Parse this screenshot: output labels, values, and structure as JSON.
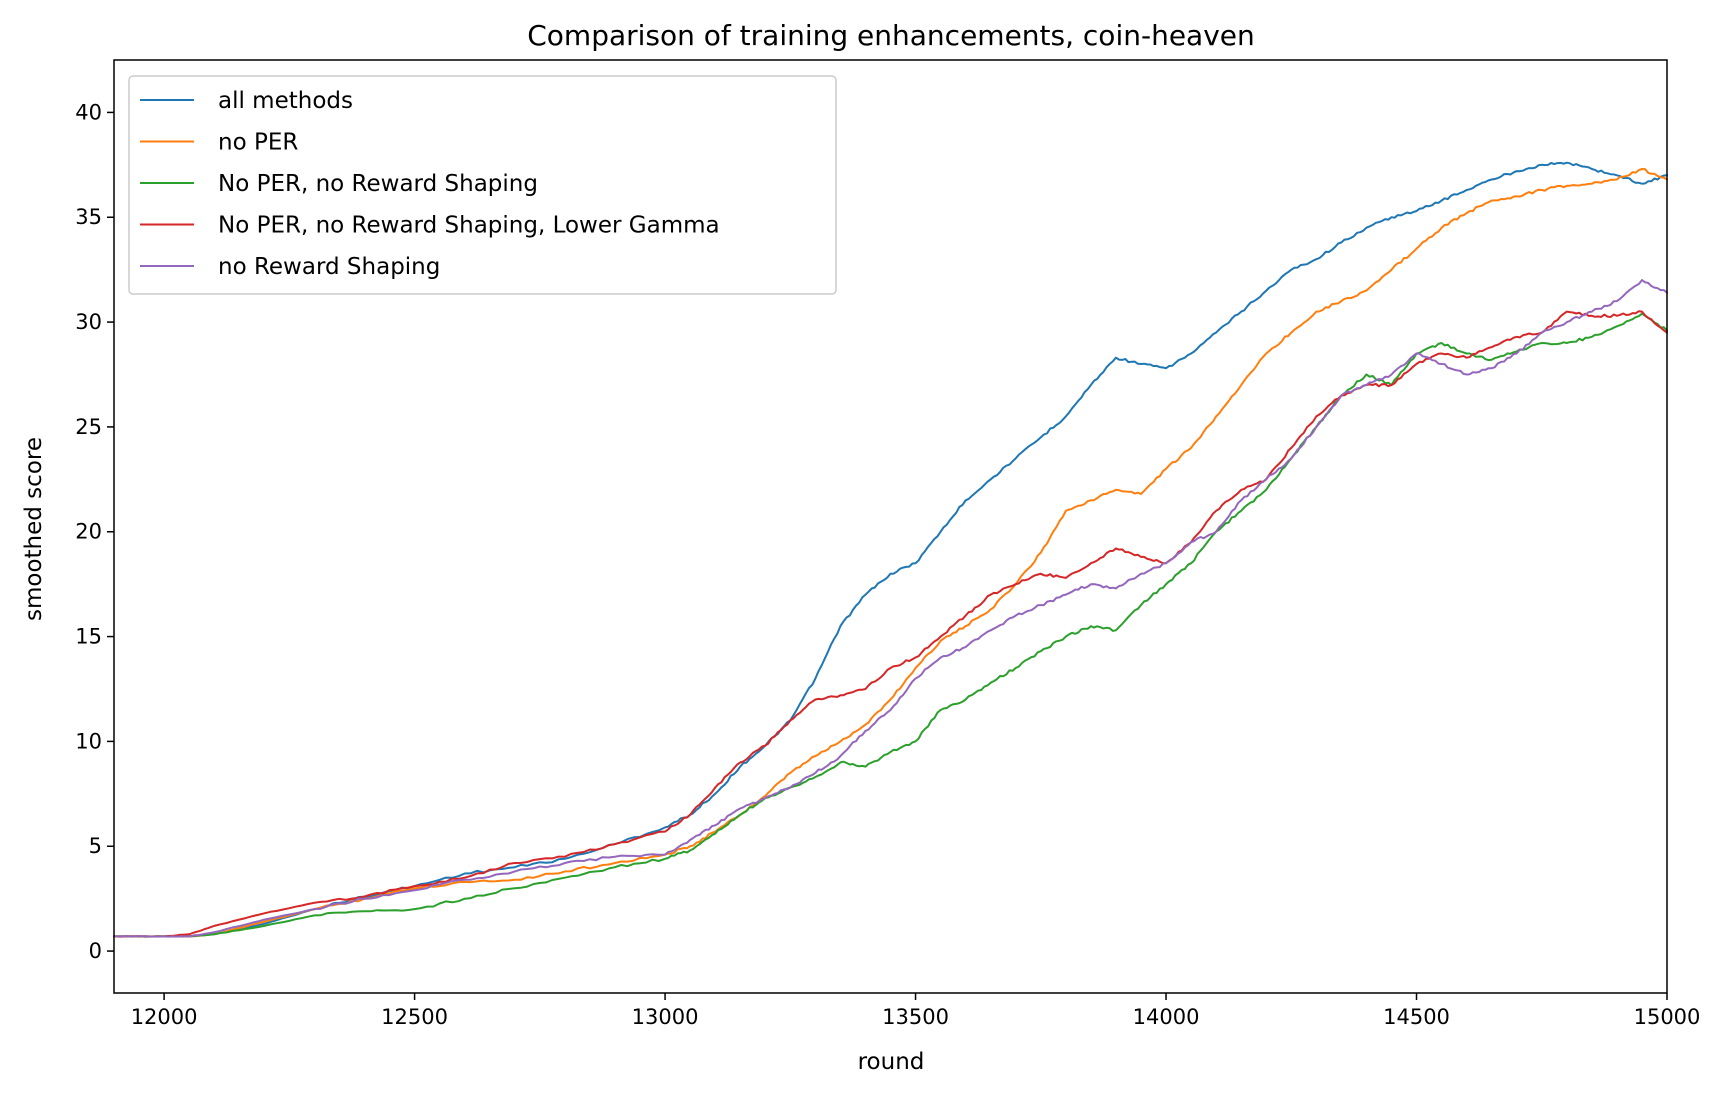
{
  "chart_data": {
    "type": "line",
    "title": "Comparison of training enhancements, coin-heaven",
    "xlabel": "round",
    "ylabel": "smoothed score",
    "xlim": [
      11900,
      15000
    ],
    "ylim": [
      -2,
      42.5
    ],
    "xticks": [
      12000,
      12500,
      13000,
      13500,
      14000,
      14500,
      15000
    ],
    "yticks": [
      0,
      5,
      10,
      15,
      20,
      25,
      30,
      35,
      40
    ],
    "grid": false,
    "legend": "top-left",
    "series": [
      {
        "name": "all methods",
        "color": "#1f77b4",
        "x": [
          11900,
          12000,
          12050,
          12100,
          12200,
          12300,
          12400,
          12500,
          12600,
          12700,
          12800,
          12900,
          13000,
          13050,
          13100,
          13150,
          13200,
          13250,
          13300,
          13350,
          13400,
          13450,
          13500,
          13550,
          13600,
          13650,
          13700,
          13750,
          13800,
          13850,
          13900,
          13950,
          14000,
          14050,
          14100,
          14150,
          14200,
          14250,
          14300,
          14350,
          14400,
          14450,
          14500,
          14550,
          14600,
          14650,
          14700,
          14750,
          14800,
          14850,
          14900,
          14950,
          15000
        ],
        "y": [
          0.7,
          0.7,
          0.7,
          0.8,
          1.3,
          2.0,
          2.6,
          3.1,
          3.7,
          4.0,
          4.4,
          5.1,
          5.9,
          6.5,
          7.5,
          8.8,
          9.8,
          11.0,
          13.0,
          15.5,
          17.0,
          18.0,
          18.5,
          20.0,
          21.5,
          22.5,
          23.5,
          24.5,
          25.5,
          27.0,
          28.3,
          28.0,
          27.8,
          28.5,
          29.5,
          30.5,
          31.5,
          32.5,
          33.0,
          33.8,
          34.5,
          35.0,
          35.3,
          35.8,
          36.3,
          36.8,
          37.2,
          37.5,
          37.6,
          37.3,
          37.0,
          36.6,
          37.0
        ]
      },
      {
        "name": "no PER",
        "color": "#ff7f0e",
        "x": [
          11900,
          12000,
          12050,
          12100,
          12200,
          12300,
          12400,
          12500,
          12600,
          12700,
          12800,
          12900,
          13000,
          13050,
          13100,
          13150,
          13200,
          13250,
          13300,
          13350,
          13400,
          13450,
          13500,
          13550,
          13600,
          13650,
          13700,
          13750,
          13800,
          13850,
          13900,
          13950,
          14000,
          14050,
          14100,
          14150,
          14200,
          14250,
          14300,
          14350,
          14400,
          14450,
          14500,
          14550,
          14600,
          14650,
          14700,
          14750,
          14800,
          14850,
          14900,
          14950,
          15000
        ],
        "y": [
          0.7,
          0.7,
          0.7,
          0.8,
          1.4,
          2.0,
          2.5,
          3.0,
          3.3,
          3.4,
          3.8,
          4.2,
          4.6,
          5.0,
          5.7,
          6.5,
          7.4,
          8.5,
          9.3,
          10.0,
          10.8,
          12.0,
          13.5,
          14.8,
          15.5,
          16.3,
          17.5,
          19.0,
          21.0,
          21.5,
          22.0,
          21.8,
          23.0,
          24.0,
          25.5,
          27.0,
          28.5,
          29.5,
          30.5,
          31.0,
          31.5,
          32.5,
          33.5,
          34.5,
          35.2,
          35.8,
          36.0,
          36.3,
          36.5,
          36.6,
          36.8,
          37.3,
          36.8
        ]
      },
      {
        "name": "No PER, no Reward Shaping",
        "color": "#2ca02c",
        "x": [
          11900,
          12000,
          12050,
          12100,
          12200,
          12300,
          12400,
          12500,
          12600,
          12700,
          12800,
          12900,
          13000,
          13050,
          13100,
          13150,
          13200,
          13250,
          13300,
          13350,
          13400,
          13450,
          13500,
          13550,
          13600,
          13650,
          13700,
          13750,
          13800,
          13850,
          13900,
          13950,
          14000,
          14050,
          14100,
          14150,
          14200,
          14250,
          14300,
          14350,
          14400,
          14450,
          14500,
          14550,
          14600,
          14650,
          14700,
          14750,
          14800,
          14850,
          14900,
          14950,
          15000
        ],
        "y": [
          0.7,
          0.7,
          0.7,
          0.8,
          1.2,
          1.7,
          1.9,
          2.0,
          2.5,
          3.0,
          3.5,
          4.0,
          4.4,
          4.8,
          5.6,
          6.5,
          7.3,
          7.8,
          8.3,
          9.0,
          8.8,
          9.5,
          10.0,
          11.5,
          12.0,
          12.8,
          13.5,
          14.3,
          15.0,
          15.5,
          15.3,
          16.5,
          17.5,
          18.5,
          20.0,
          21.0,
          22.0,
          23.5,
          25.0,
          26.5,
          27.5,
          27.0,
          28.5,
          29.0,
          28.5,
          28.2,
          28.6,
          29.0,
          29.0,
          29.3,
          29.8,
          30.4,
          29.6
        ]
      },
      {
        "name": "No PER, no Reward Shaping, Lower Gamma",
        "color": "#d62728",
        "x": [
          11900,
          12000,
          12050,
          12100,
          12200,
          12300,
          12400,
          12500,
          12600,
          12700,
          12800,
          12900,
          13000,
          13050,
          13100,
          13150,
          13200,
          13250,
          13300,
          13350,
          13400,
          13450,
          13500,
          13550,
          13600,
          13650,
          13700,
          13750,
          13800,
          13850,
          13900,
          13950,
          14000,
          14050,
          14100,
          14150,
          14200,
          14250,
          14300,
          14350,
          14400,
          14450,
          14500,
          14550,
          14600,
          14650,
          14700,
          14750,
          14800,
          14850,
          14900,
          14950,
          15000
        ],
        "y": [
          0.7,
          0.7,
          0.8,
          1.2,
          1.8,
          2.3,
          2.6,
          3.1,
          3.5,
          4.2,
          4.5,
          5.1,
          5.7,
          6.5,
          7.8,
          9.0,
          9.8,
          11.0,
          12.0,
          12.2,
          12.5,
          13.5,
          14.0,
          15.0,
          16.0,
          17.0,
          17.5,
          18.0,
          17.8,
          18.5,
          19.2,
          18.8,
          18.5,
          19.5,
          21.0,
          22.0,
          22.5,
          24.0,
          25.5,
          26.5,
          27.0,
          27.0,
          28.0,
          28.5,
          28.3,
          28.8,
          29.3,
          29.5,
          30.5,
          30.3,
          30.3,
          30.5,
          29.5
        ]
      },
      {
        "name": "no Reward Shaping",
        "color": "#9467bd",
        "x": [
          11900,
          12000,
          12050,
          12100,
          12200,
          12300,
          12400,
          12500,
          12600,
          12700,
          12800,
          12900,
          13000,
          13050,
          13100,
          13150,
          13200,
          13250,
          13300,
          13350,
          13400,
          13450,
          13500,
          13550,
          13600,
          13650,
          13700,
          13750,
          13800,
          13850,
          13900,
          13950,
          14000,
          14050,
          14100,
          14150,
          14200,
          14250,
          14300,
          14350,
          14400,
          14450,
          14500,
          14550,
          14600,
          14650,
          14700,
          14750,
          14800,
          14850,
          14900,
          14950,
          15000
        ],
        "y": [
          0.7,
          0.7,
          0.7,
          0.9,
          1.5,
          2.0,
          2.5,
          2.9,
          3.4,
          3.8,
          4.2,
          4.5,
          4.6,
          5.3,
          6.0,
          6.8,
          7.3,
          7.8,
          8.5,
          9.3,
          10.5,
          11.5,
          13.0,
          14.0,
          14.5,
          15.3,
          16.0,
          16.5,
          17.0,
          17.5,
          17.3,
          18.0,
          18.5,
          19.5,
          20.0,
          21.5,
          22.5,
          23.5,
          25.0,
          26.5,
          27.0,
          27.5,
          28.5,
          28.0,
          27.5,
          27.8,
          28.5,
          29.5,
          30.0,
          30.5,
          31.0,
          32.0,
          31.4
        ]
      }
    ]
  }
}
